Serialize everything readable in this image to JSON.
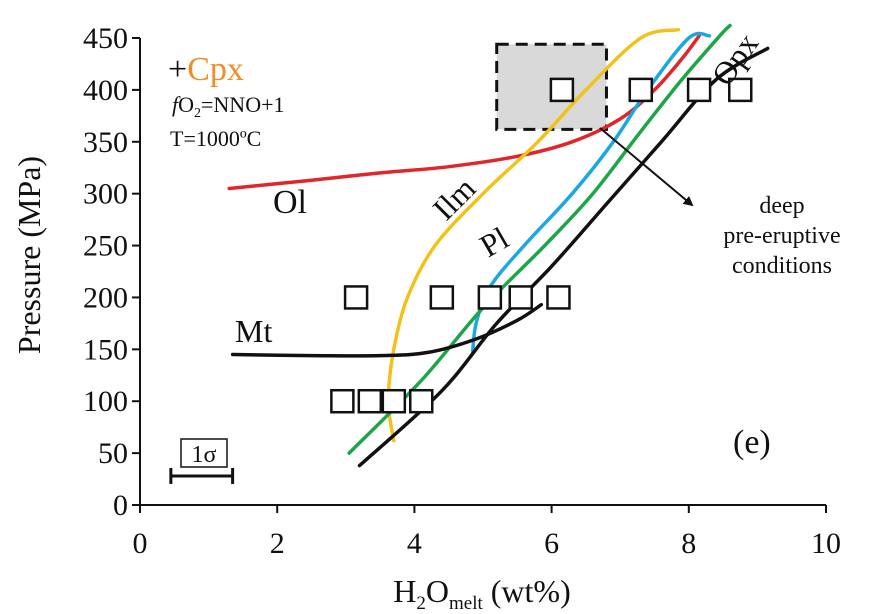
{
  "chart_data": {
    "type": "scatter",
    "panel_label": "(e)",
    "xlabel": {
      "main": "H",
      "sub1": "2",
      "mid": "O",
      "sub2": "melt",
      "tail": " (wt%)"
    },
    "ylabel": "Pressure (MPa)",
    "xlim": [
      0,
      10
    ],
    "ylim": [
      0,
      450
    ],
    "xticks": [
      0,
      2,
      4,
      6,
      8,
      10
    ],
    "yticks": [
      0,
      50,
      100,
      150,
      200,
      250,
      300,
      350,
      400,
      450
    ],
    "grid": false,
    "experiments": [
      {
        "x": 2.95,
        "y": 100
      },
      {
        "x": 3.35,
        "y": 100
      },
      {
        "x": 3.7,
        "y": 100
      },
      {
        "x": 4.1,
        "y": 100
      },
      {
        "x": 3.15,
        "y": 200
      },
      {
        "x": 4.4,
        "y": 200
      },
      {
        "x": 5.1,
        "y": 200
      },
      {
        "x": 5.55,
        "y": 200
      },
      {
        "x": 6.1,
        "y": 200
      },
      {
        "x": 6.15,
        "y": 400
      },
      {
        "x": 7.3,
        "y": 400
      },
      {
        "x": 8.15,
        "y": 400
      },
      {
        "x": 8.75,
        "y": 400
      }
    ],
    "phase_boundaries": [
      {
        "name": "Ol",
        "color": "#e0262b",
        "points": [
          [
            1.3,
            305
          ],
          [
            2.5,
            313
          ],
          [
            3.5,
            320
          ],
          [
            4.5,
            326
          ],
          [
            5.5,
            336
          ],
          [
            6.3,
            350
          ],
          [
            7.0,
            372
          ],
          [
            7.5,
            400
          ],
          [
            7.9,
            430
          ],
          [
            8.15,
            452
          ]
        ]
      },
      {
        "name": "Ilm",
        "color": "#f2c21a",
        "points": [
          [
            3.7,
            62
          ],
          [
            3.62,
            100
          ],
          [
            3.7,
            150
          ],
          [
            3.9,
            200
          ],
          [
            4.3,
            250
          ],
          [
            5.0,
            300
          ],
          [
            5.8,
            350
          ],
          [
            6.5,
            400
          ],
          [
            7.3,
            450
          ],
          [
            7.85,
            458
          ]
        ]
      },
      {
        "name": "Pl",
        "color": "#1ba8e0",
        "points": [
          [
            4.85,
            148
          ],
          [
            4.9,
            175
          ],
          [
            5.1,
            210
          ],
          [
            5.6,
            250
          ],
          [
            6.3,
            300
          ],
          [
            6.9,
            350
          ],
          [
            7.4,
            400
          ],
          [
            8.0,
            450
          ],
          [
            8.3,
            452
          ]
        ]
      },
      {
        "name": "Opx",
        "color": "#1da548",
        "points": [
          [
            3.05,
            50
          ],
          [
            4.1,
            120
          ],
          [
            5.0,
            190
          ],
          [
            5.9,
            250
          ],
          [
            6.6,
            300
          ],
          [
            7.3,
            360
          ],
          [
            7.9,
            410
          ],
          [
            8.45,
            452
          ],
          [
            8.6,
            462
          ]
        ]
      },
      {
        "name": "black-boundary",
        "color": "#111111",
        "points": [
          [
            3.2,
            38
          ],
          [
            4.4,
            110
          ],
          [
            5.2,
            175
          ],
          [
            6.0,
            230
          ],
          [
            6.8,
            290
          ],
          [
            7.6,
            350
          ],
          [
            8.4,
            410
          ],
          [
            9.15,
            440
          ]
        ]
      },
      {
        "name": "Mt",
        "color": "#111111",
        "points": [
          [
            1.35,
            145
          ],
          [
            2.5,
            144
          ],
          [
            3.5,
            144
          ],
          [
            4.2,
            147
          ],
          [
            4.9,
            160
          ],
          [
            5.5,
            178
          ],
          [
            5.85,
            193
          ]
        ]
      }
    ],
    "labels": [
      {
        "text": "Ol",
        "color": "#e0262b"
      },
      {
        "text": "Ilm",
        "color": "#f2c21a"
      },
      {
        "text": "Pl",
        "color": "#1ba8e0"
      },
      {
        "text": "Opx",
        "color": "#1da548"
      },
      {
        "text": "Mt",
        "color": "#111111"
      }
    ],
    "condition_text": {
      "plus": "+",
      "phase": "Cpx",
      "phase_color": "#f28c28",
      "fo2_f": "f",
      "fo2_o": "O",
      "fo2_sub": "2",
      "fo2_rest": "=NNO+1",
      "temperature": "T=1000ºC"
    },
    "deep_box": {
      "x_min": 5.2,
      "x_max": 6.8,
      "y_min": 362,
      "y_max": 444,
      "fill": "#d9d9d9"
    },
    "deep_annotation": [
      "deep",
      "pre-eruptive",
      "conditions"
    ],
    "error_bar": {
      "label": "1σ",
      "x_min": 0.45,
      "x_max": 1.35,
      "y": 28
    }
  }
}
